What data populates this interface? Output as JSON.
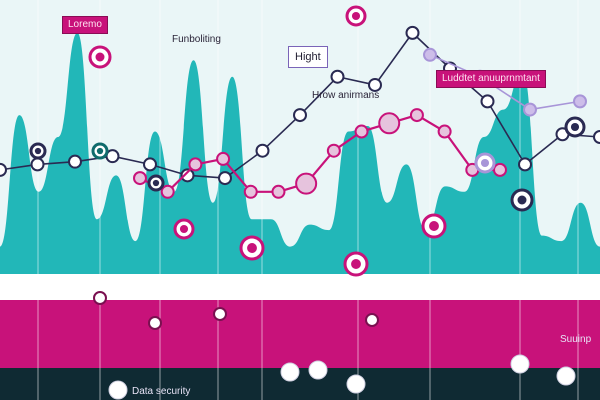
{
  "chart_data": {
    "type": "line",
    "title": "",
    "xlabel": "",
    "ylabel": "",
    "grid": false,
    "area_series": [
      {
        "color": "#17b3b4",
        "values": [
          10,
          58,
          30,
          50,
          88,
          20,
          36,
          12,
          52,
          30,
          78,
          26,
          72,
          20,
          20,
          10,
          18,
          16,
          52,
          54,
          26,
          40,
          16,
          32,
          30,
          50,
          60,
          74,
          14,
          12,
          26,
          10
        ]
      }
    ],
    "line_series": [
      {
        "color": "#2a2a52",
        "values": [
          38,
          40,
          41,
          43,
          40,
          36,
          35,
          45,
          58,
          72,
          69,
          88,
          75,
          63,
          40,
          51,
          50
        ]
      },
      {
        "color": "#c8127a",
        "values": [
          35,
          30,
          40,
          42,
          30,
          30,
          33,
          45,
          52,
          55,
          58,
          52,
          38,
          38
        ]
      },
      {
        "color": "#a895d8",
        "values": [
          80,
          72,
          60,
          63
        ]
      }
    ],
    "annotations": [
      "Loremo",
      "Funboliting",
      "Hight",
      "Hrow anirmans",
      "Luddtet anuuprnmtant",
      "Data security",
      "Suuinp"
    ],
    "colors": {
      "background": "#eaf6f7",
      "area": "#17b3b4",
      "band_pink": "#c8127a",
      "band_dark": "#0f2a33",
      "line_dark": "#2a2a52",
      "line_pink": "#c8127a",
      "line_purple": "#a895d8"
    }
  },
  "labels": {
    "tag1": "Loremo",
    "tag2": "Funboliting",
    "tag3": "Hight",
    "tag4": "Hrow anirmans",
    "tag5": "Luddtet anuuprnmtant",
    "tag6": "Data security",
    "tag7": "Suuinp"
  }
}
